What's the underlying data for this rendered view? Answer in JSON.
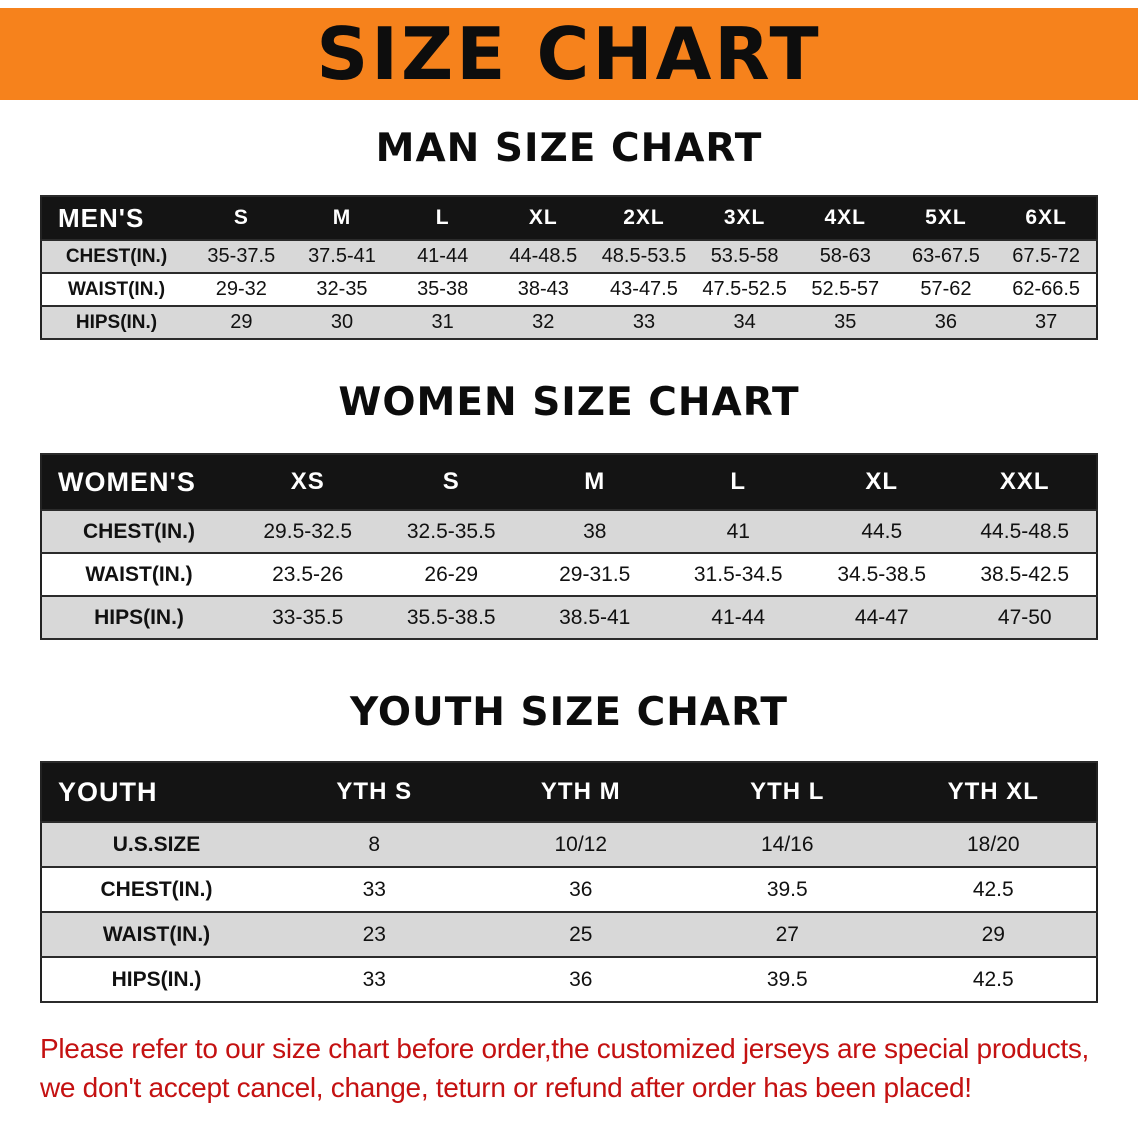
{
  "banner": {
    "title": "SIZE CHART"
  },
  "colors": {
    "banner_orange": "#f6821c",
    "header_black": "#141414",
    "stripe_gray": "#d8d8d8",
    "notice_red": "#c41111",
    "text_black": "#111111"
  },
  "tables": {
    "men": {
      "section_title": "MAN SIZE CHART",
      "header": [
        "MEN'S",
        "S",
        "M",
        "L",
        "XL",
        "2XL",
        "3XL",
        "4XL",
        "5XL",
        "6XL"
      ],
      "rows": [
        [
          "CHEST(IN.)",
          "35-37.5",
          "37.5-41",
          "41-44",
          "44-48.5",
          "48.5-53.5",
          "53.5-58",
          "58-63",
          "63-67.5",
          "67.5-72"
        ],
        [
          "WAIST(IN.)",
          "29-32",
          "32-35",
          "35-38",
          "38-43",
          "43-47.5",
          "47.5-52.5",
          "52.5-57",
          "57-62",
          "62-66.5"
        ],
        [
          "HIPS(IN.)",
          "29",
          "30",
          "31",
          "32",
          "33",
          "34",
          "35",
          "36",
          "37"
        ]
      ]
    },
    "women": {
      "section_title": "WOMEN SIZE CHART",
      "header": [
        "WOMEN'S",
        "XS",
        "S",
        "M",
        "L",
        "XL",
        "XXL"
      ],
      "rows": [
        [
          "CHEST(IN.)",
          "29.5-32.5",
          "32.5-35.5",
          "38",
          "41",
          "44.5",
          "44.5-48.5"
        ],
        [
          "WAIST(IN.)",
          "23.5-26",
          "26-29",
          "29-31.5",
          "31.5-34.5",
          "34.5-38.5",
          "38.5-42.5"
        ],
        [
          "HIPS(IN.)",
          "33-35.5",
          "35.5-38.5",
          "38.5-41",
          "41-44",
          "44-47",
          "47-50"
        ]
      ]
    },
    "youth": {
      "section_title": "YOUTH SIZE CHART",
      "header": [
        "YOUTH",
        "YTH S",
        "YTH M",
        "YTH L",
        "YTH XL"
      ],
      "rows": [
        [
          "U.S.SIZE",
          "8",
          "10/12",
          "14/16",
          "18/20"
        ],
        [
          "CHEST(IN.)",
          "33",
          "36",
          "39.5",
          "42.5"
        ],
        [
          "WAIST(IN.)",
          "23",
          "25",
          "27",
          "29"
        ],
        [
          "HIPS(IN.)",
          "33",
          "36",
          "39.5",
          "42.5"
        ]
      ]
    }
  },
  "footer": {
    "line1": "Please refer to our size chart before order,the customized jerseys are special products,",
    "line2": "we don't accept cancel, change, teturn or refund after order has been placed!"
  }
}
